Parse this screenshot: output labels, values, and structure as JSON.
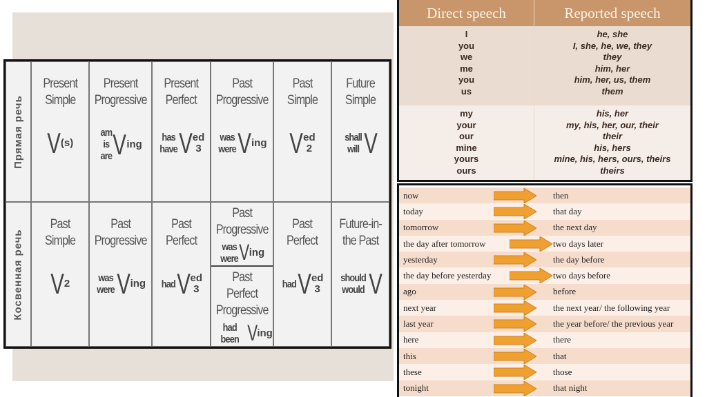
{
  "tenses": {
    "rows": [
      {
        "label": "Прямая речь",
        "cells": [
          {
            "title": [
              "Present",
              "Simple"
            ],
            "aux": [],
            "v": "V",
            "sub": "(s)",
            "sup": ""
          },
          {
            "title": [
              "Present",
              "Progressive"
            ],
            "aux": [
              "am",
              "is",
              "are"
            ],
            "v": "V",
            "sub": "ing",
            "sup": ""
          },
          {
            "title": [
              "Present",
              "Perfect"
            ],
            "aux": [
              "has",
              "have"
            ],
            "v": "V",
            "sub": "3",
            "sup": "ed"
          },
          {
            "title": [
              "Past",
              "Progressive"
            ],
            "aux": [
              "was",
              "were"
            ],
            "v": "V",
            "sub": "ing",
            "sup": ""
          },
          {
            "title": [
              "Past",
              "Simple"
            ],
            "aux": [],
            "v": "V",
            "sub": "2",
            "sup": "ed"
          },
          {
            "title": [
              "Future",
              "Simple"
            ],
            "aux": [
              "shall",
              "will"
            ],
            "v": "V",
            "sub": "",
            "sup": ""
          }
        ]
      },
      {
        "label": "Косвенная речь",
        "cells": [
          {
            "title": [
              "Past",
              "Simple"
            ],
            "aux": [],
            "v": "V",
            "sub": "2",
            "sup": ""
          },
          {
            "title": [
              "Past",
              "Progressive"
            ],
            "aux": [
              "was",
              "were"
            ],
            "v": "V",
            "sub": "ing",
            "sup": ""
          },
          {
            "title": [
              "Past",
              "Perfect"
            ],
            "aux": [
              "had"
            ],
            "v": "V",
            "sub": "3",
            "sup": "ed"
          },
          {
            "split": [
              {
                "title": [
                  "Past",
                  "Progressive"
                ],
                "aux": [
                  "was",
                  "were"
                ],
                "v": "V",
                "sub": "ing",
                "sup": ""
              },
              {
                "title": [
                  "Past Perfect",
                  "Progressive"
                ],
                "aux": [
                  "had been"
                ],
                "v": "V",
                "sub": "ing",
                "sup": ""
              }
            ]
          },
          {
            "title": [
              "Past",
              "Perfect"
            ],
            "aux": [
              "had"
            ],
            "v": "V",
            "sub": "3",
            "sup": "ed"
          },
          {
            "title": [
              "Future-in-",
              "the Past"
            ],
            "aux": [
              "should",
              "would"
            ],
            "v": "V",
            "sub": "",
            "sup": ""
          }
        ]
      }
    ]
  },
  "pronouns": {
    "headers": [
      "Direct speech",
      "Reported speech"
    ],
    "groups": [
      {
        "direct": [
          "I",
          "you",
          "we",
          "me",
          "you",
          "us"
        ],
        "reported": [
          "he, she",
          "I, she, he, we, they",
          "they",
          "him, her",
          "him, her, us, them",
          "them"
        ]
      },
      {
        "direct": [
          "my",
          "your",
          "our",
          "mine",
          "yours",
          "ours"
        ],
        "reported": [
          "his, her",
          "my, his, her, our, their",
          "their",
          "his, hers",
          "mine, his, hers, ours, theirs",
          "theirs"
        ]
      }
    ]
  },
  "adverbs": [
    [
      "now",
      "then"
    ],
    [
      "today",
      "that day"
    ],
    [
      "tomorrow",
      "the next day"
    ],
    [
      "the day after tomorrow",
      "two days later"
    ],
    [
      "yesterday",
      "the day before"
    ],
    [
      "the day before yesterday",
      "two days before"
    ],
    [
      "ago",
      "before"
    ],
    [
      "next year",
      "the next year/ the following year"
    ],
    [
      "last year",
      "the year before/ the previous year"
    ],
    [
      "here",
      "there"
    ],
    [
      "this",
      "that"
    ],
    [
      "these",
      "those"
    ],
    [
      "tonight",
      "that night"
    ]
  ],
  "colors": {
    "header": "#c8966a",
    "arrow": "#f0a030"
  },
  "arrow_icon": "arrow-right-icon"
}
